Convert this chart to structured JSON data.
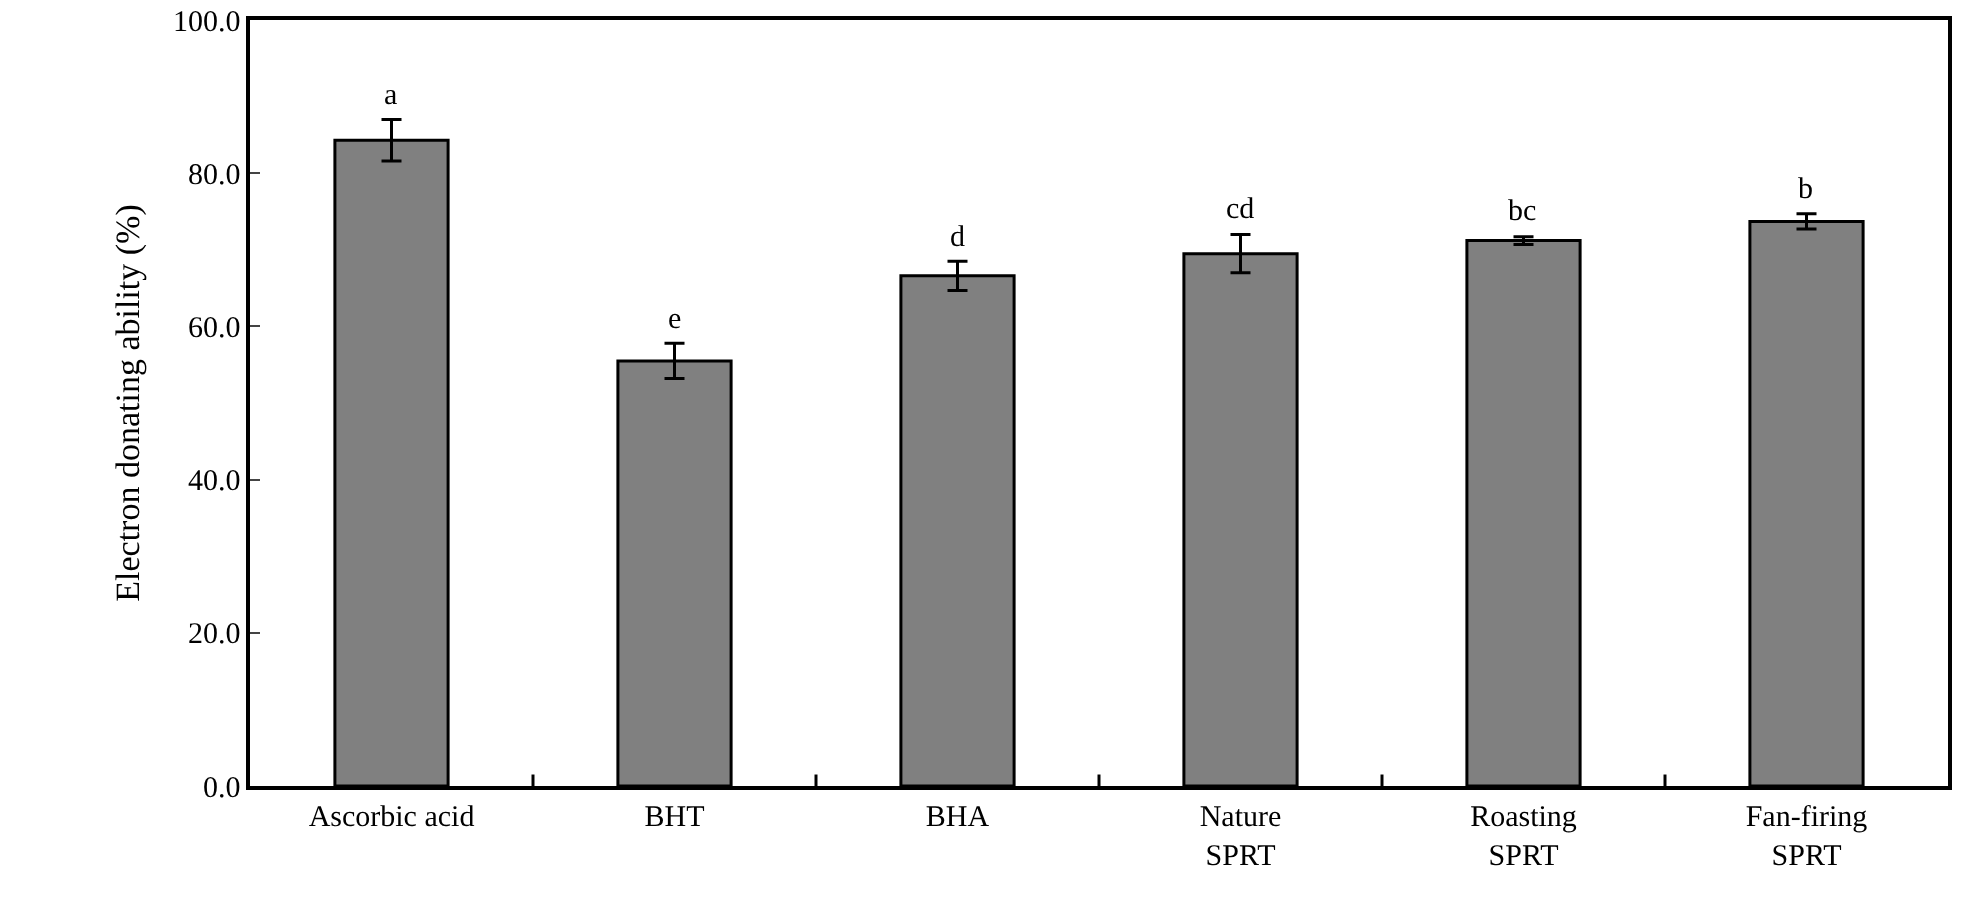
{
  "chart_data": {
    "type": "bar",
    "ylabel": "Electron donating ability (%)",
    "categories": [
      "Ascorbic acid",
      "BHT",
      "BHA",
      "Nature\nSPRT",
      "Roasting\nSPRT",
      "Fan-firing\nSPRT"
    ],
    "values": [
      84.3,
      55.5,
      66.6,
      69.5,
      71.2,
      73.7
    ],
    "errors": [
      2.7,
      2.3,
      1.9,
      2.5,
      0.5,
      1.0
    ],
    "color": "#808080",
    "ylim": [
      0,
      100
    ],
    "yticks": [
      {
        "value": 0,
        "label": "0.0"
      },
      {
        "value": 20,
        "label": "20.0"
      },
      {
        "value": 40,
        "label": "40.0"
      },
      {
        "value": 60,
        "label": "60.0"
      },
      {
        "value": 80,
        "label": "80.0"
      },
      {
        "value": 100,
        "label": "100.0"
      }
    ],
    "annotations": [
      {
        "text": "a",
        "x": "Ascorbic acid",
        "y": 87.0
      },
      {
        "text": "e",
        "x": "BHT",
        "y": 57.8
      },
      {
        "text": "d",
        "x": "BHA",
        "y": 68.5
      },
      {
        "text": "cd",
        "x": "Nature\nSPRT",
        "y": 72.0
      },
      {
        "text": "bc",
        "x": "Roasting\nSPRT",
        "y": 71.7
      },
      {
        "text": "b",
        "x": "Fan-firing\nSPRT",
        "y": 74.7
      }
    ],
    "grid": false,
    "legend": false
  }
}
